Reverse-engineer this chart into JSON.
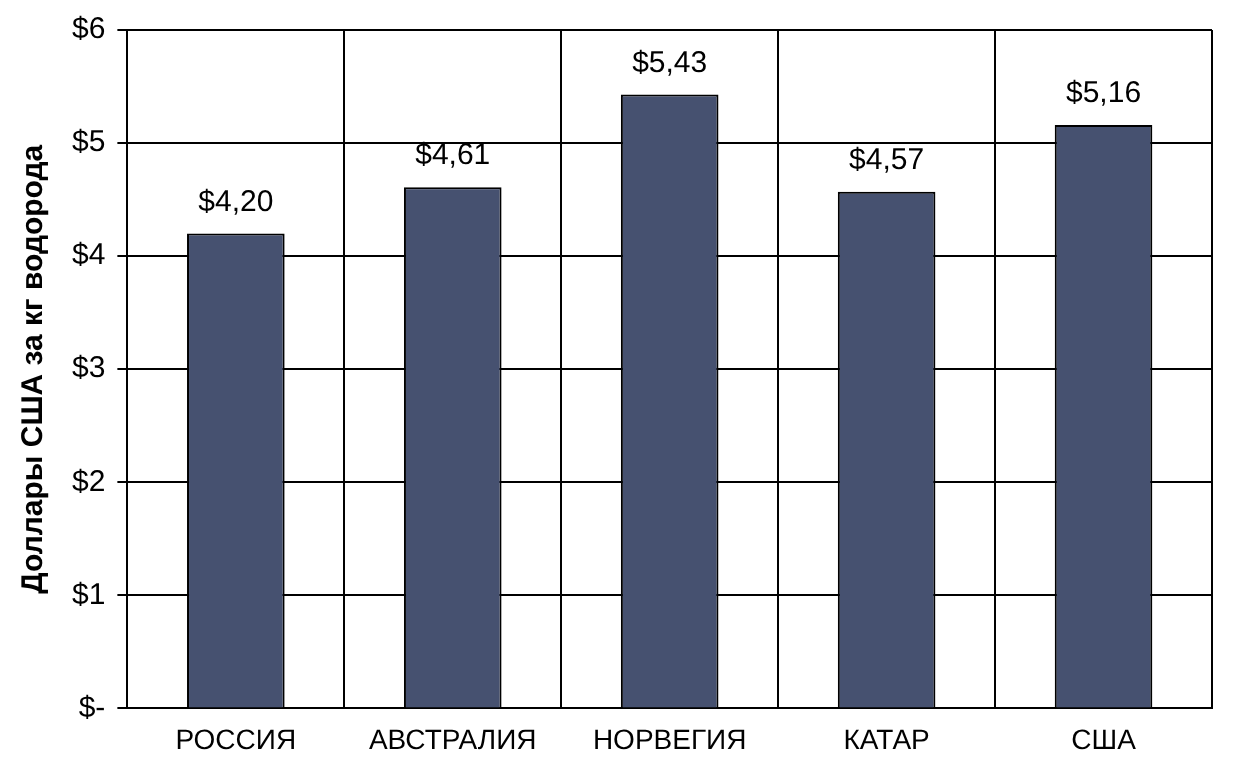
{
  "chart_data": {
    "type": "bar",
    "ylabel": "Доллары США за кг водорода",
    "categories": [
      "РОССИЯ",
      "АВСТРАЛИЯ",
      "НОРВЕГИЯ",
      "КАТАР",
      "США"
    ],
    "values": [
      4.2,
      4.61,
      5.43,
      4.57,
      5.16
    ],
    "value_labels": [
      "$4,20",
      "$4,61",
      "$5,43",
      "$4,57",
      "$5,16"
    ],
    "color": "#465170",
    "ylim": [
      0,
      6
    ],
    "yticks": [
      {
        "value": 0,
        "label": "$-"
      },
      {
        "value": 1,
        "label": "$1"
      },
      {
        "value": 2,
        "label": "$2"
      },
      {
        "value": 3,
        "label": "$3"
      },
      {
        "value": 4,
        "label": "$4"
      },
      {
        "value": 5,
        "label": "$5"
      },
      {
        "value": 6,
        "label": "$6"
      }
    ],
    "grid": true
  }
}
